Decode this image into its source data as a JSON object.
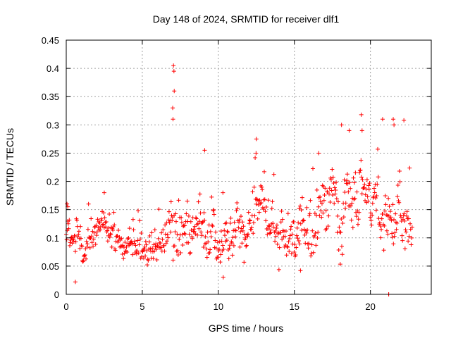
{
  "chart_data": {
    "type": "scatter",
    "title": "Day 148 of 2024, SRMTID for receiver dlf1",
    "xlabel": "GPS time / hours",
    "ylabel": "SRMTID / TECUs",
    "xlim": [
      0,
      24.0
    ],
    "ylim": [
      0,
      0.45
    ],
    "x_ticks": [
      0,
      5,
      10,
      15,
      20
    ],
    "x_tick_labels": [
      "0",
      "5",
      "10",
      "15",
      "20"
    ],
    "y_ticks": [
      0,
      0.05,
      0.1,
      0.15,
      0.2,
      0.25,
      0.3,
      0.35,
      0.4,
      0.45
    ],
    "y_tick_labels": [
      "0",
      "0.05",
      "0.1",
      "0.15",
      "0.2",
      "0.25",
      "0.3",
      "0.35",
      "0.4",
      "0.45"
    ],
    "grid": true,
    "marker": "+",
    "color": "#ff0000",
    "sampling_interval_hours": 0.0333,
    "series": [
      {
        "name": "dlf1 SRMTID",
        "x_start": 0.0,
        "x_end": 22.75,
        "baseline_profile": {
          "hours": [
            0.0,
            1.0,
            2.0,
            2.5,
            3.0,
            4.0,
            5.0,
            5.5,
            6.5,
            7.0,
            7.5,
            8.0,
            9.0,
            10.0,
            11.0,
            12.0,
            12.5,
            13.0,
            14.0,
            15.0,
            15.5,
            16.0,
            16.5,
            17.0,
            18.0,
            19.0,
            19.5,
            20.0,
            21.0,
            21.5,
            22.0,
            22.75
          ],
          "values": [
            0.09,
            0.08,
            0.095,
            0.13,
            0.11,
            0.09,
            0.085,
            0.07,
            0.1,
            0.12,
            0.13,
            0.12,
            0.12,
            0.115,
            0.11,
            0.12,
            0.13,
            0.12,
            0.1,
            0.085,
            0.09,
            0.12,
            0.13,
            0.15,
            0.15,
            0.17,
            0.18,
            0.16,
            0.14,
            0.12,
            0.11,
            0.11
          ]
        },
        "spread_profile": {
          "hours": [
            0.0,
            6.5,
            7.0,
            8.0,
            12.0,
            16.0,
            17.0,
            18.5,
            20.0,
            22.75
          ],
          "values": [
            0.03,
            0.035,
            0.06,
            0.045,
            0.045,
            0.05,
            0.06,
            0.07,
            0.06,
            0.05
          ]
        },
        "notable_points": [
          {
            "x": 7.05,
            "y": 0.405
          },
          {
            "x": 7.08,
            "y": 0.395
          },
          {
            "x": 7.1,
            "y": 0.36
          },
          {
            "x": 7.0,
            "y": 0.33
          },
          {
            "x": 7.02,
            "y": 0.31
          },
          {
            "x": 12.5,
            "y": 0.275
          },
          {
            "x": 12.48,
            "y": 0.25
          },
          {
            "x": 19.4,
            "y": 0.318
          },
          {
            "x": 19.45,
            "y": 0.29
          },
          {
            "x": 21.5,
            "y": 0.31
          },
          {
            "x": 21.55,
            "y": 0.3
          },
          {
            "x": 22.2,
            "y": 0.308
          },
          {
            "x": 20.8,
            "y": 0.31
          },
          {
            "x": 18.1,
            "y": 0.3
          },
          {
            "x": 18.6,
            "y": 0.29
          },
          {
            "x": 0.1,
            "y": 0.155
          },
          {
            "x": 0.05,
            "y": 0.16
          },
          {
            "x": 0.6,
            "y": 0.022
          },
          {
            "x": 2.5,
            "y": 0.18
          },
          {
            "x": 9.1,
            "y": 0.255
          },
          {
            "x": 10.3,
            "y": 0.18
          },
          {
            "x": 16.6,
            "y": 0.25
          },
          {
            "x": 15.4,
            "y": 0.042
          },
          {
            "x": 21.2,
            "y": 0.0
          },
          {
            "x": 21.2,
            "y": 0.0
          }
        ]
      }
    ]
  }
}
